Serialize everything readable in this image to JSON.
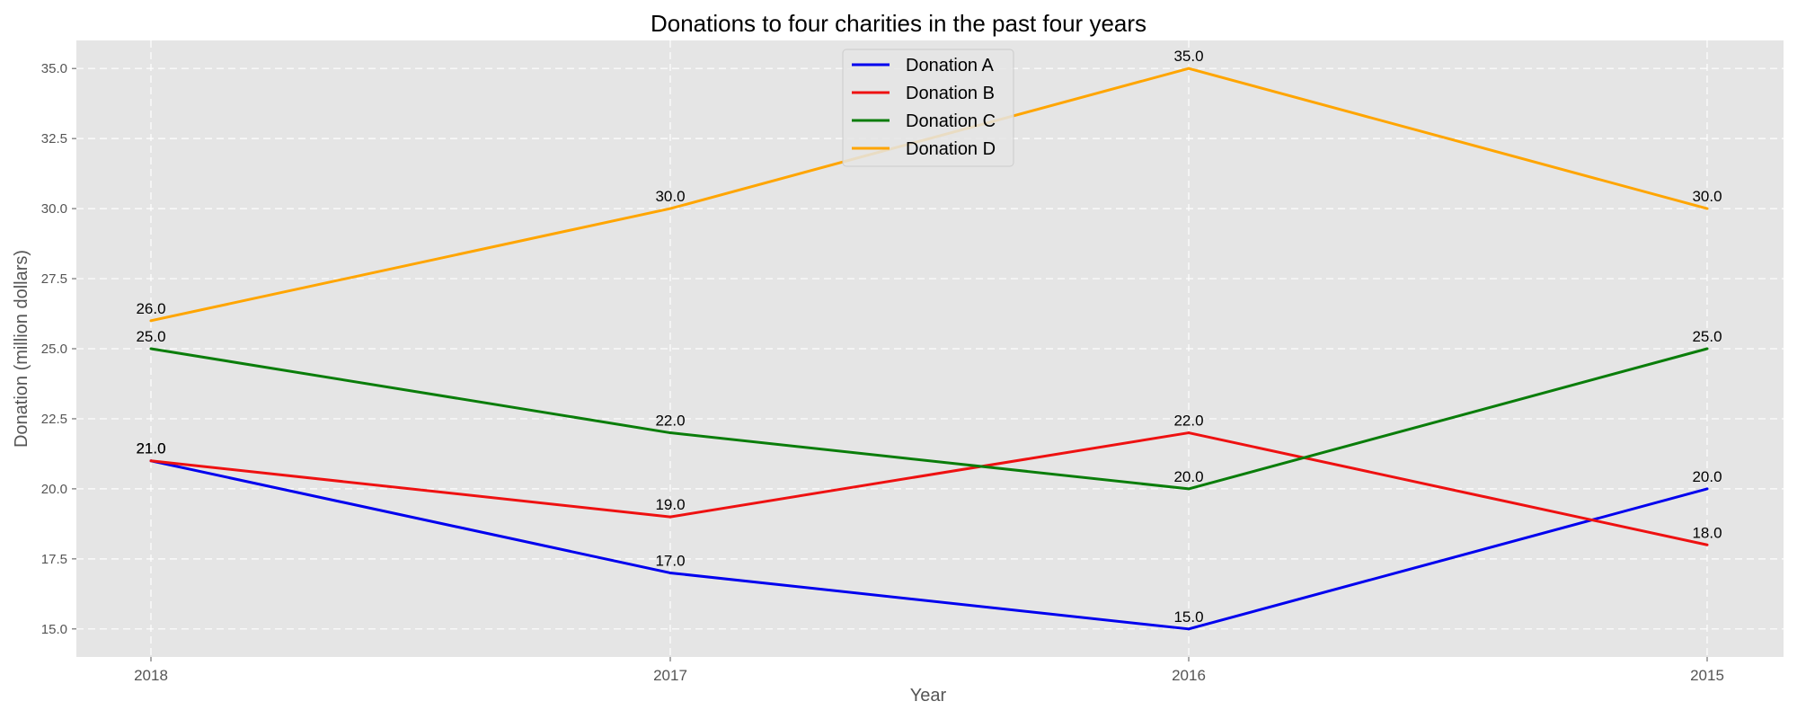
{
  "chart_data": {
    "type": "line",
    "title": "Donations to four charities in the past four years",
    "xlabel": "Year",
    "ylabel": "Donation (million dollars)",
    "categories": [
      "2018",
      "2017",
      "2016",
      "2015"
    ],
    "ylim": [
      14.0,
      36.0
    ],
    "yticks": [
      15.0,
      17.5,
      20.0,
      22.5,
      25.0,
      27.5,
      30.0,
      32.5,
      35.0
    ],
    "ytick_labels": [
      "15.0",
      "17.5",
      "20.0",
      "22.5",
      "25.0",
      "27.5",
      "30.0",
      "32.5",
      "35.0"
    ],
    "grid": true,
    "legend_placement": "upper-center",
    "series": [
      {
        "name": "Donation A",
        "color": "#0000ee",
        "values": [
          21.0,
          17.0,
          15.0,
          20.0
        ],
        "labels": [
          "21.0",
          "17.0",
          "15.0",
          "20.0"
        ]
      },
      {
        "name": "Donation B",
        "color": "#ee1111",
        "values": [
          21.0,
          19.0,
          22.0,
          18.0
        ],
        "labels": [
          "21.0",
          "19.0",
          "22.0",
          "18.0"
        ]
      },
      {
        "name": "Donation C",
        "color": "#0a7d0a",
        "values": [
          25.0,
          22.0,
          20.0,
          25.0
        ],
        "labels": [
          "25.0",
          "22.0",
          "20.0",
          "25.0"
        ]
      },
      {
        "name": "Donation D",
        "color": "#ffa500",
        "values": [
          26.0,
          30.0,
          35.0,
          30.0
        ],
        "labels": [
          "26.0",
          "30.0",
          "35.0",
          "30.0"
        ]
      }
    ]
  }
}
